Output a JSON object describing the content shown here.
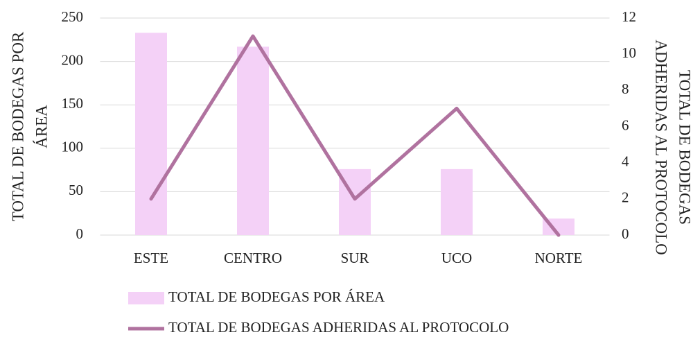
{
  "chart_data": {
    "type": "bar_line",
    "categories": [
      "ESTE",
      "CENTRO",
      "SUR",
      "UCO",
      "NORTE"
    ],
    "series": [
      {
        "name": "TOTAL DE BODEGAS POR ÁREA",
        "type": "bar",
        "color": "#f4d1f7",
        "values": [
          233,
          217,
          76,
          76,
          19
        ]
      },
      {
        "name": "TOTAL DE BODEGAS ADHERIDAS AL PROTOCOLO",
        "type": "line",
        "axis": "y2",
        "color": "#b0729f",
        "values": [
          2,
          11,
          2,
          7,
          0
        ]
      }
    ],
    "y_label": [
      "TOTAL DE BODEGAS POR",
      "ÁREA"
    ],
    "y2_label": [
      "TOTAL DE BODEGAS",
      "ADHERIDAS AL PROTOCOLO"
    ],
    "ylim": [
      0,
      250
    ],
    "yticks": [
      0,
      50,
      100,
      150,
      200,
      250
    ],
    "y2lim": [
      0,
      12
    ],
    "y2ticks": [
      0,
      2,
      4,
      6,
      8,
      10,
      12
    ],
    "grid": true,
    "legend": "bottom"
  }
}
